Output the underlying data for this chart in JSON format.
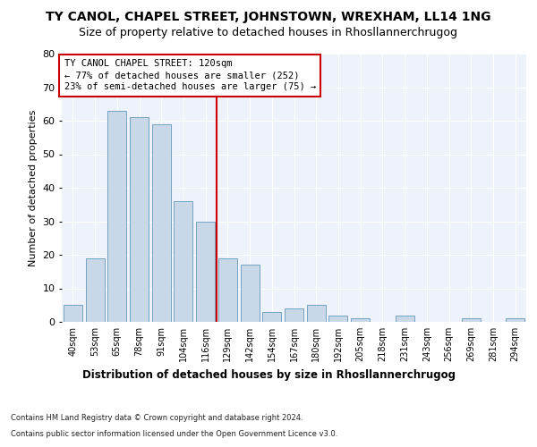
{
  "title": "TY CANOL, CHAPEL STREET, JOHNSTOWN, WREXHAM, LL14 1NG",
  "subtitle": "Size of property relative to detached houses in Rhosllannerchrugog",
  "xlabel": "Distribution of detached houses by size in Rhosllannerchrugog",
  "ylabel": "Number of detached properties",
  "categories": [
    "40sqm",
    "53sqm",
    "65sqm",
    "78sqm",
    "91sqm",
    "104sqm",
    "116sqm",
    "129sqm",
    "142sqm",
    "154sqm",
    "167sqm",
    "180sqm",
    "192sqm",
    "205sqm",
    "218sqm",
    "231sqm",
    "243sqm",
    "256sqm",
    "269sqm",
    "281sqm",
    "294sqm"
  ],
  "values": [
    5,
    19,
    63,
    61,
    59,
    36,
    30,
    19,
    17,
    3,
    4,
    5,
    2,
    1,
    0,
    2,
    0,
    0,
    1,
    0,
    1
  ],
  "bar_color": "#c8d8e8",
  "bar_edge_color": "#6699bb",
  "vline_x": 6,
  "vline_color": "#cc0000",
  "annotation_title": "TY CANOL CHAPEL STREET: 120sqm",
  "annotation_line1": "← 77% of detached houses are smaller (252)",
  "annotation_line2": "23% of semi-detached houses are larger (75) →",
  "annotation_box_color": "#ffffff",
  "annotation_box_edge": "#cc0000",
  "ylim": [
    0,
    80
  ],
  "yticks": [
    0,
    10,
    20,
    30,
    40,
    50,
    60,
    70,
    80
  ],
  "footer1": "Contains HM Land Registry data © Crown copyright and database right 2024.",
  "footer2": "Contains public sector information licensed under the Open Government Licence v3.0.",
  "bg_color": "#eef2fa",
  "title_fontsize": 10,
  "subtitle_fontsize": 9,
  "annotation_fontsize": 7.5,
  "ylabel_fontsize": 8,
  "ytick_fontsize": 8,
  "xtick_fontsize": 7,
  "xlabel_fontsize": 8.5,
  "footer_fontsize": 6
}
